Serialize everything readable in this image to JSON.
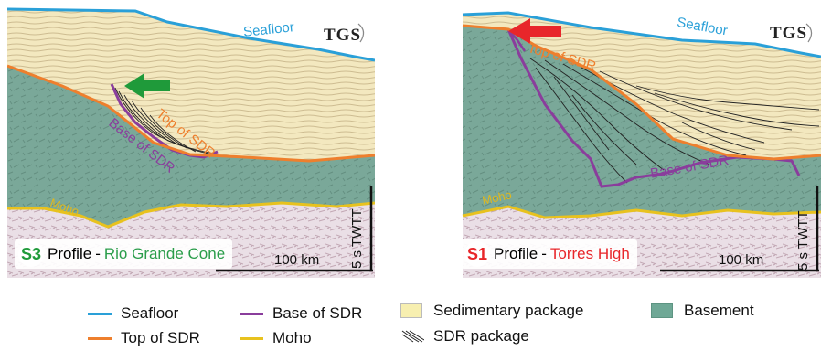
{
  "panels": {
    "s3": {
      "badge": "S3",
      "profile_word": "Profile",
      "location": "Rio Grande Cone",
      "seafloor": "Seafloor",
      "top_sdr": "Top of SDR",
      "base_sdr": "Base of SDR",
      "moho": "Moho",
      "logo": "TGS",
      "scale_h": "100 km",
      "scale_v": "5 s TWTT",
      "arrow_color": "#1f9a3a",
      "location_color": "#2a9d4a"
    },
    "s1": {
      "badge": "S1",
      "profile_word": "Profile",
      "location": "Torres High",
      "seafloor": "Seafloor",
      "top_sdr": "Top of SDR",
      "base_sdr": "Base of SDR",
      "moho": "Moho",
      "logo": "TGS",
      "scale_h": "100 km",
      "scale_v": "5 s TWTT",
      "arrow_color": "#e8262a",
      "location_color": "#e8262a"
    }
  },
  "legend": {
    "seafloor": {
      "label": "Seafloor",
      "color": "#2aa0d8"
    },
    "top_sdr": {
      "label": "Top of SDR",
      "color": "#ee7f2d"
    },
    "base_sdr": {
      "label": "Base of SDR",
      "color": "#8a3d9c"
    },
    "moho": {
      "label": "Moho",
      "color": "#e8c21e"
    },
    "sedimentary": {
      "label": "Sedimentary package",
      "color": "#f7efb0"
    },
    "sdr_package": {
      "label": "SDR package"
    },
    "basement": {
      "label": "Basement",
      "color": "#6fa896"
    }
  }
}
